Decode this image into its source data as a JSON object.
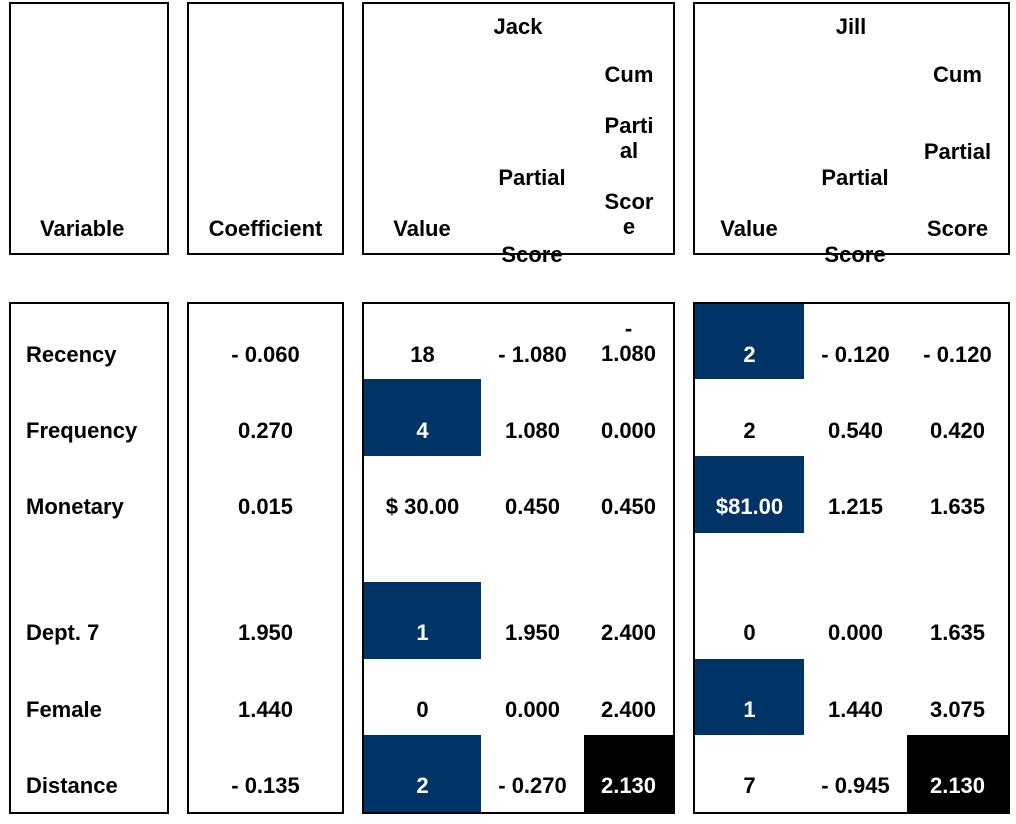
{
  "header": {
    "variable": "Variable",
    "coefficient": "Coefficient",
    "jack": {
      "name": "Jack",
      "value": "Value",
      "partial": "Partial\nScore",
      "cum_top": "Cum",
      "cum_mid": "Parti\nal",
      "cum_bot": "Scor\ne"
    },
    "jill": {
      "name": "Jill",
      "value": "Value",
      "partial": "Partial\nScore",
      "cum_top": "Cum",
      "cum_mid": "Partial",
      "cum_bot": "Score"
    }
  },
  "rows": [
    {
      "variable": "Recency",
      "coefficient": "- 0.060",
      "jack_value": "18",
      "jack_partial": "- 1.080",
      "jack_cum": "-\n1.080",
      "jill_value": "2",
      "jill_partial": "- 0.120",
      "jill_cum": "- 0.120"
    },
    {
      "variable": "Frequency",
      "coefficient": "0.270",
      "jack_value": "4",
      "jack_partial": "1.080",
      "jack_cum": "0.000",
      "jill_value": "2",
      "jill_partial": "0.540",
      "jill_cum": "0.420"
    },
    {
      "variable": "Monetary",
      "coefficient": "0.015",
      "jack_value": "$ 30.00",
      "jack_partial": "0.450",
      "jack_cum": "0.450",
      "jill_value": "$81.00",
      "jill_partial": "1.215",
      "jill_cum": "1.635"
    },
    {
      "variable": "Dept. 7",
      "coefficient": "1.950",
      "jack_value": "1",
      "jack_partial": "1.950",
      "jack_cum": "2.400",
      "jill_value": "0",
      "jill_partial": "0.000",
      "jill_cum": "1.635"
    },
    {
      "variable": "Female",
      "coefficient": "1.440",
      "jack_value": "0",
      "jack_partial": "0.000",
      "jack_cum": "2.400",
      "jill_value": "1",
      "jill_partial": "1.440",
      "jill_cum": "3.075"
    },
    {
      "variable": "Distance",
      "coefficient": "- 0.135",
      "jack_value": "2",
      "jack_partial": "- 0.270",
      "jack_cum": "2.130",
      "jill_value": "7",
      "jill_partial": "- 0.945",
      "jill_cum": "2.130"
    }
  ],
  "colors": {
    "highlight": "#003366",
    "total": "#000000"
  }
}
